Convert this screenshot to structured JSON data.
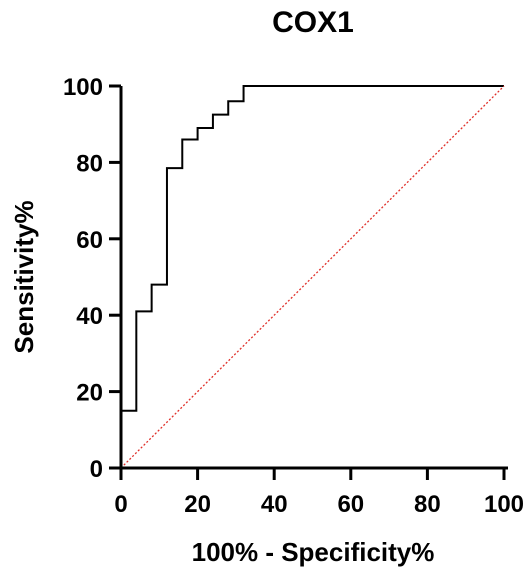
{
  "chart_data": {
    "type": "line",
    "title": "COX1",
    "xlabel": "100% - Specificity%",
    "ylabel": "Sensitivity%",
    "xlim": [
      0,
      100
    ],
    "ylim": [
      0,
      100
    ],
    "x_ticks": [
      "0",
      "20",
      "40",
      "60",
      "80",
      "100"
    ],
    "y_ticks": [
      "0",
      "20",
      "40",
      "60",
      "80",
      "100"
    ],
    "grid": false,
    "series": [
      {
        "style": "step",
        "color": "#000000",
        "x": [
          0,
          4,
          4,
          8,
          8,
          12,
          12,
          16,
          16,
          20,
          20,
          24,
          24,
          28,
          28,
          32,
          32,
          36,
          100
        ],
        "y": [
          15,
          15,
          41,
          41,
          48,
          48,
          78.5,
          78.5,
          86,
          86,
          89,
          89,
          92.5,
          92.5,
          96,
          96,
          100,
          100,
          100
        ]
      },
      {
        "style": "dotted-reference",
        "color": "#e0302a",
        "x": [
          0,
          100
        ],
        "y": [
          0,
          100
        ]
      }
    ]
  }
}
